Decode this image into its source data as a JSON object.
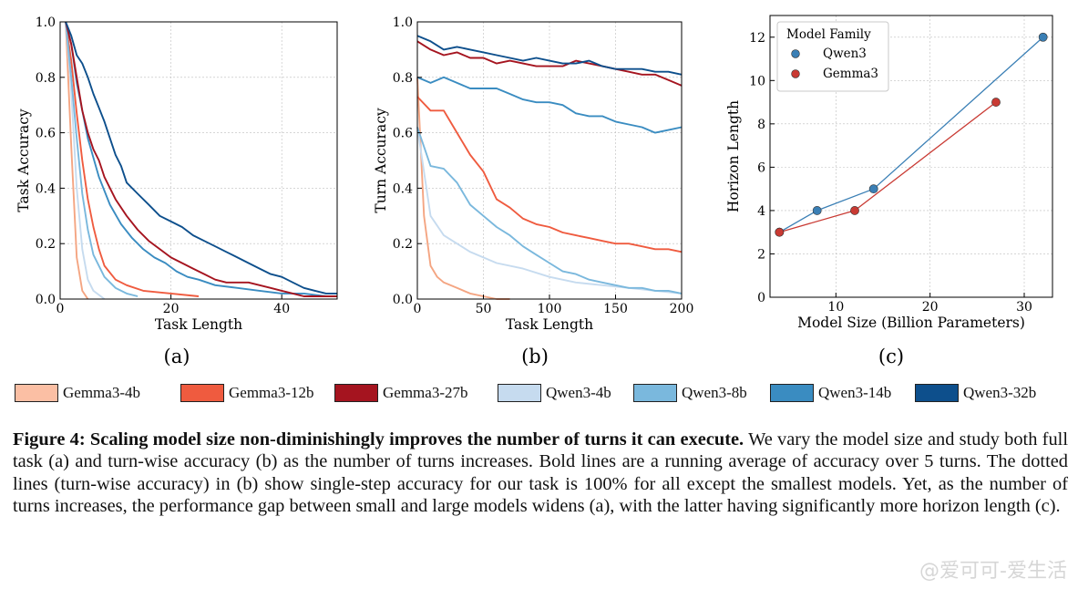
{
  "chart_data": [
    {
      "type": "line",
      "panel_label": "(a)",
      "xlabel": "Task Length",
      "ylabel": "Task Accuracy",
      "xlim": [
        0,
        50
      ],
      "ylim": [
        0,
        1.0
      ],
      "xticks": [
        0,
        20,
        40
      ],
      "yticks": [
        0.0,
        0.2,
        0.4,
        0.6,
        0.8,
        1.0
      ],
      "series": [
        {
          "name": "Gemma3-4b",
          "color": "#f4a582",
          "x": [
            1,
            2,
            3,
            4,
            5
          ],
          "y": [
            1.0,
            0.55,
            0.15,
            0.03,
            0.0
          ]
        },
        {
          "name": "Qwen3-4b",
          "color": "#c6dbef",
          "x": [
            1,
            2,
            3,
            4,
            5,
            6,
            8
          ],
          "y": [
            1.0,
            0.75,
            0.4,
            0.18,
            0.07,
            0.03,
            0.0
          ]
        },
        {
          "name": "Gemma3-12b",
          "color": "#ef5b3f",
          "x": [
            1,
            2,
            3,
            4,
            5,
            6,
            7,
            8,
            10,
            12,
            15,
            20,
            25
          ],
          "y": [
            1.0,
            0.86,
            0.67,
            0.5,
            0.36,
            0.26,
            0.18,
            0.12,
            0.07,
            0.05,
            0.03,
            0.02,
            0.01
          ]
        },
        {
          "name": "Qwen3-8b",
          "color": "#7ab8dd",
          "x": [
            1,
            2,
            3,
            4,
            5,
            6,
            8,
            10,
            12,
            14
          ],
          "y": [
            1.0,
            0.8,
            0.58,
            0.38,
            0.25,
            0.16,
            0.08,
            0.04,
            0.02,
            0.01
          ]
        },
        {
          "name": "Qwen3-14b",
          "color": "#3a8cc1",
          "x": [
            1,
            2,
            3,
            5,
            7,
            9,
            11,
            13,
            15,
            17,
            19,
            21,
            23,
            25,
            28,
            32,
            36,
            40,
            44,
            48,
            50
          ],
          "y": [
            1.0,
            0.92,
            0.78,
            0.58,
            0.44,
            0.34,
            0.27,
            0.22,
            0.18,
            0.15,
            0.13,
            0.1,
            0.08,
            0.07,
            0.05,
            0.04,
            0.03,
            0.02,
            0.02,
            0.01,
            0.01
          ]
        },
        {
          "name": "Gemma3-27b",
          "color": "#a5141f",
          "x": [
            1,
            2,
            3,
            4,
            5,
            6,
            7,
            8,
            10,
            12,
            14,
            16,
            18,
            20,
            22,
            24,
            26,
            28,
            30,
            32,
            34,
            36,
            38,
            40,
            42,
            44,
            46,
            48,
            50
          ],
          "y": [
            1.0,
            0.92,
            0.8,
            0.68,
            0.6,
            0.54,
            0.5,
            0.44,
            0.36,
            0.3,
            0.25,
            0.21,
            0.18,
            0.15,
            0.13,
            0.11,
            0.09,
            0.07,
            0.06,
            0.06,
            0.06,
            0.05,
            0.04,
            0.03,
            0.02,
            0.01,
            0.01,
            0.01,
            0.01
          ]
        },
        {
          "name": "Qwen3-32b",
          "color": "#0d4f8c",
          "x": [
            1,
            2,
            3,
            4,
            5,
            6,
            7,
            8,
            9,
            10,
            11,
            12,
            14,
            16,
            18,
            20,
            22,
            24,
            26,
            28,
            30,
            32,
            34,
            36,
            38,
            40,
            42,
            44,
            46,
            48,
            50
          ],
          "y": [
            1.0,
            0.95,
            0.88,
            0.85,
            0.8,
            0.74,
            0.69,
            0.64,
            0.58,
            0.52,
            0.48,
            0.42,
            0.38,
            0.34,
            0.3,
            0.28,
            0.26,
            0.23,
            0.21,
            0.19,
            0.17,
            0.15,
            0.13,
            0.11,
            0.09,
            0.08,
            0.06,
            0.04,
            0.03,
            0.02,
            0.02
          ]
        }
      ]
    },
    {
      "type": "line",
      "panel_label": "(b)",
      "xlabel": "Task Length",
      "ylabel": "Turn Accuracy",
      "xlim": [
        0,
        200
      ],
      "ylim": [
        0,
        1.0
      ],
      "xticks": [
        0,
        50,
        100,
        150,
        200
      ],
      "yticks": [
        0.0,
        0.2,
        0.4,
        0.6,
        0.8,
        1.0
      ],
      "series": [
        {
          "name": "Gemma3-4b",
          "color": "#f4a582",
          "x": [
            0,
            5,
            10,
            15,
            20,
            30,
            40,
            50,
            60,
            70
          ],
          "y": [
            0.8,
            0.3,
            0.12,
            0.08,
            0.06,
            0.04,
            0.02,
            0.01,
            0.0,
            0.0
          ]
        },
        {
          "name": "Qwen3-4b",
          "color": "#c6dbef",
          "x": [
            0,
            10,
            20,
            30,
            40,
            50,
            60,
            80,
            100,
            120,
            140,
            160,
            180,
            200
          ],
          "y": [
            0.62,
            0.3,
            0.23,
            0.2,
            0.17,
            0.15,
            0.13,
            0.11,
            0.08,
            0.06,
            0.05,
            0.04,
            0.03,
            0.02
          ]
        },
        {
          "name": "Qwen3-8b",
          "color": "#7ab8dd",
          "x": [
            0,
            10,
            20,
            30,
            40,
            50,
            60,
            70,
            80,
            90,
            100,
            110,
            120,
            130,
            140,
            150,
            160,
            170,
            180,
            190,
            200
          ],
          "y": [
            0.62,
            0.48,
            0.47,
            0.42,
            0.34,
            0.3,
            0.26,
            0.23,
            0.19,
            0.16,
            0.13,
            0.1,
            0.09,
            0.07,
            0.06,
            0.05,
            0.04,
            0.04,
            0.03,
            0.03,
            0.02
          ]
        },
        {
          "name": "Gemma3-12b",
          "color": "#ef5b3f",
          "x": [
            0,
            10,
            20,
            30,
            40,
            50,
            60,
            70,
            80,
            90,
            100,
            110,
            120,
            130,
            140,
            150,
            160,
            170,
            180,
            190,
            200
          ],
          "y": [
            0.73,
            0.68,
            0.68,
            0.6,
            0.52,
            0.46,
            0.36,
            0.33,
            0.29,
            0.27,
            0.26,
            0.24,
            0.23,
            0.22,
            0.21,
            0.2,
            0.2,
            0.19,
            0.18,
            0.18,
            0.17
          ]
        },
        {
          "name": "Qwen3-14b",
          "color": "#3a8cc1",
          "x": [
            0,
            10,
            20,
            30,
            40,
            50,
            60,
            70,
            80,
            90,
            100,
            110,
            120,
            130,
            140,
            150,
            160,
            170,
            180,
            190,
            200
          ],
          "y": [
            0.8,
            0.78,
            0.8,
            0.78,
            0.76,
            0.76,
            0.76,
            0.74,
            0.72,
            0.71,
            0.71,
            0.7,
            0.67,
            0.66,
            0.66,
            0.64,
            0.63,
            0.62,
            0.6,
            0.61,
            0.62
          ]
        },
        {
          "name": "Gemma3-27b",
          "color": "#a5141f",
          "x": [
            0,
            10,
            20,
            30,
            40,
            50,
            60,
            70,
            80,
            90,
            100,
            110,
            120,
            130,
            140,
            150,
            160,
            170,
            180,
            190,
            200
          ],
          "y": [
            0.93,
            0.9,
            0.88,
            0.89,
            0.87,
            0.87,
            0.85,
            0.86,
            0.85,
            0.84,
            0.84,
            0.84,
            0.86,
            0.85,
            0.84,
            0.83,
            0.82,
            0.81,
            0.81,
            0.79,
            0.77
          ]
        },
        {
          "name": "Qwen3-32b",
          "color": "#0d4f8c",
          "x": [
            0,
            10,
            20,
            30,
            40,
            50,
            60,
            70,
            80,
            90,
            100,
            110,
            120,
            130,
            140,
            150,
            160,
            170,
            180,
            190,
            200
          ],
          "y": [
            0.95,
            0.93,
            0.9,
            0.91,
            0.9,
            0.89,
            0.88,
            0.87,
            0.86,
            0.87,
            0.86,
            0.85,
            0.85,
            0.86,
            0.84,
            0.83,
            0.83,
            0.83,
            0.82,
            0.82,
            0.81
          ]
        }
      ]
    },
    {
      "type": "scatter",
      "panel_label": "(c)",
      "xlabel": "Model Size (Billion Parameters)",
      "ylabel": "Horizon Length",
      "xlim": [
        3,
        33
      ],
      "ylim": [
        0,
        13
      ],
      "xticks": [
        10,
        20,
        30
      ],
      "yticks": [
        0,
        2,
        4,
        6,
        8,
        10,
        12
      ],
      "legend_title": "Model Family",
      "legend_position": "top-left",
      "series": [
        {
          "name": "Qwen3",
          "color": "#3a7fb5",
          "x": [
            4,
            8,
            14,
            32
          ],
          "y": [
            3,
            4,
            5,
            12
          ]
        },
        {
          "name": "Gemma3",
          "color": "#c93a33",
          "x": [
            4,
            12,
            27
          ],
          "y": [
            3,
            4,
            9
          ]
        }
      ]
    }
  ],
  "legend": [
    {
      "label": "Gemma3-4b",
      "color": "#fbbfa4"
    },
    {
      "label": "Gemma3-12b",
      "color": "#ef5b3f"
    },
    {
      "label": "Gemma3-27b",
      "color": "#a5141f"
    },
    {
      "label": "Qwen3-4b",
      "color": "#c6dbef"
    },
    {
      "label": "Qwen3-8b",
      "color": "#7ab8dd"
    },
    {
      "label": "Qwen3-14b",
      "color": "#3a8cc1"
    },
    {
      "label": "Qwen3-32b",
      "color": "#0d4f8c"
    }
  ],
  "caption": {
    "title": "Figure 4: Scaling model size non-diminishingly improves the number of turns it can execute.",
    "body": " We vary the model size and study both full task (a) and turn-wise accuracy (b) as the number of turns increases. Bold lines are a running average of accuracy over 5 turns. The dotted lines (turn-wise accuracy) in (b) show single-step accuracy for our task is 100% for all except the smallest models. Yet, as the number of turns increases, the performance gap between small and large models widens (a), with the latter having significantly more horizon length (c)."
  },
  "watermark": "@爱可可-爱生活"
}
